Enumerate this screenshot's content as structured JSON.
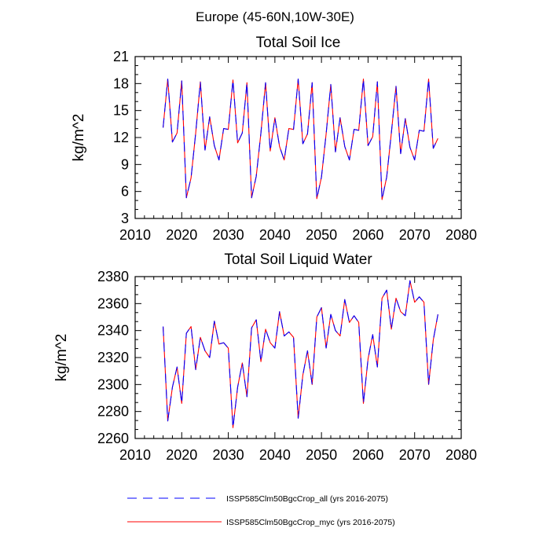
{
  "figure_title": "Europe (45-60N,10W-30E)",
  "legend": {
    "entries": [
      {
        "label": "ISSP585Clm50BgcCrop_all (yrs 2016-2075)",
        "color": "#0000ff",
        "dash": "dashed"
      },
      {
        "label": "ISSP585Clm50BgcCrop_myc (yrs 2016-2075)",
        "color": "#ff0000",
        "dash": "solid"
      }
    ]
  },
  "chart_data": [
    {
      "type": "line",
      "title": "Total Soil Ice",
      "xlabel": "",
      "ylabel": "kg/m^2",
      "xlim": [
        2010,
        2080
      ],
      "ylim": [
        3,
        21
      ],
      "xticks": [
        2010,
        2020,
        2030,
        2040,
        2050,
        2060,
        2070,
        2080
      ],
      "yticks": [
        3,
        6,
        9,
        12,
        15,
        18,
        21
      ],
      "x": [
        2016,
        2017,
        2018,
        2019,
        2020,
        2021,
        2022,
        2023,
        2024,
        2025,
        2026,
        2027,
        2028,
        2029,
        2030,
        2031,
        2032,
        2033,
        2034,
        2035,
        2036,
        2037,
        2038,
        2039,
        2040,
        2041,
        2042,
        2043,
        2044,
        2045,
        2046,
        2047,
        2048,
        2049,
        2050,
        2051,
        2052,
        2053,
        2054,
        2055,
        2056,
        2057,
        2058,
        2059,
        2060,
        2061,
        2062,
        2063,
        2064,
        2065,
        2066,
        2067,
        2068,
        2069,
        2070,
        2071,
        2072,
        2073,
        2074,
        2075
      ],
      "series": [
        {
          "name": "ISSP585Clm50BgcCrop_all (yrs 2016-2075)",
          "color": "#0000ff",
          "values": [
            13.1,
            18.5,
            11.5,
            12.5,
            18.3,
            5.3,
            7.5,
            12.5,
            18.2,
            10.6,
            14.3,
            11.1,
            9.5,
            13.0,
            12.9,
            18.4,
            11.4,
            12.5,
            18.1,
            5.3,
            7.7,
            12.5,
            18.1,
            10.5,
            14.2,
            11.0,
            9.5,
            13.0,
            12.9,
            18.5,
            11.3,
            12.4,
            18.1,
            5.2,
            7.6,
            12.4,
            17.9,
            10.4,
            14.2,
            11.0,
            9.5,
            12.9,
            12.8,
            18.5,
            11.1,
            12.1,
            18.2,
            5.1,
            7.6,
            12.5,
            17.7,
            10.2,
            14.1,
            10.9,
            9.5,
            12.8,
            12.7,
            18.5,
            10.8,
            11.9
          ]
        },
        {
          "name": "ISSP585Clm50BgcCrop_myc (yrs 2016-2075)",
          "color": "#ff0000",
          "values": [
            13.1,
            18.5,
            11.5,
            12.5,
            18.3,
            5.3,
            7.5,
            12.5,
            18.2,
            10.6,
            14.3,
            11.1,
            9.5,
            13.0,
            12.9,
            18.4,
            11.4,
            12.5,
            18.1,
            5.3,
            7.7,
            12.5,
            18.1,
            10.5,
            14.2,
            11.0,
            9.5,
            13.0,
            12.9,
            18.5,
            11.3,
            12.4,
            18.1,
            5.2,
            7.6,
            12.4,
            17.9,
            10.4,
            14.2,
            11.0,
            9.5,
            12.9,
            12.8,
            18.5,
            11.1,
            12.1,
            18.2,
            5.1,
            7.6,
            12.5,
            17.7,
            10.2,
            14.1,
            10.9,
            9.5,
            12.8,
            12.7,
            18.5,
            10.8,
            11.9
          ]
        }
      ]
    },
    {
      "type": "line",
      "title": "Total Soil Liquid Water",
      "xlabel": "",
      "ylabel": "kg/m^2",
      "xlim": [
        2010,
        2080
      ],
      "ylim": [
        2260,
        2380
      ],
      "xticks": [
        2010,
        2020,
        2030,
        2040,
        2050,
        2060,
        2070,
        2080
      ],
      "yticks": [
        2260,
        2280,
        2300,
        2320,
        2340,
        2360,
        2380
      ],
      "x": [
        2016,
        2017,
        2018,
        2019,
        2020,
        2021,
        2022,
        2023,
        2024,
        2025,
        2026,
        2027,
        2028,
        2029,
        2030,
        2031,
        2032,
        2033,
        2034,
        2035,
        2036,
        2037,
        2038,
        2039,
        2040,
        2041,
        2042,
        2043,
        2044,
        2045,
        2046,
        2047,
        2048,
        2049,
        2050,
        2051,
        2052,
        2053,
        2054,
        2055,
        2056,
        2057,
        2058,
        2059,
        2060,
        2061,
        2062,
        2063,
        2064,
        2065,
        2066,
        2067,
        2068,
        2069,
        2070,
        2071,
        2072,
        2073,
        2074,
        2075
      ],
      "series": [
        {
          "name": "ISSP585Clm50BgcCrop_all (yrs 2016-2075)",
          "color": "#0000ff",
          "values": [
            2343,
            2273,
            2298,
            2313,
            2286,
            2338,
            2343,
            2311,
            2335,
            2325,
            2320,
            2347,
            2330,
            2331,
            2327,
            2268,
            2298,
            2316,
            2291,
            2342,
            2348,
            2317,
            2341,
            2331,
            2327,
            2354,
            2336,
            2339,
            2335,
            2275,
            2307,
            2325,
            2300,
            2350,
            2357,
            2327,
            2352,
            2340,
            2336,
            2363,
            2346,
            2351,
            2346,
            2286,
            2319,
            2337,
            2313,
            2364,
            2370,
            2341,
            2364,
            2354,
            2351,
            2377,
            2361,
            2365,
            2361,
            2300,
            2333,
            2352
          ]
        },
        {
          "name": "ISSP585Clm50BgcCrop_myc (yrs 2016-2075)",
          "color": "#ff0000",
          "values": [
            2343,
            2273,
            2298,
            2313,
            2286,
            2338,
            2343,
            2311,
            2335,
            2325,
            2320,
            2347,
            2330,
            2331,
            2327,
            2268,
            2298,
            2316,
            2291,
            2342,
            2348,
            2317,
            2341,
            2331,
            2327,
            2354,
            2336,
            2339,
            2335,
            2275,
            2307,
            2325,
            2300,
            2350,
            2357,
            2327,
            2352,
            2340,
            2336,
            2363,
            2346,
            2351,
            2346,
            2286,
            2319,
            2337,
            2313,
            2364,
            2370,
            2341,
            2364,
            2354,
            2351,
            2377,
            2361,
            2365,
            2361,
            2300,
            2333,
            2352
          ]
        }
      ]
    }
  ]
}
